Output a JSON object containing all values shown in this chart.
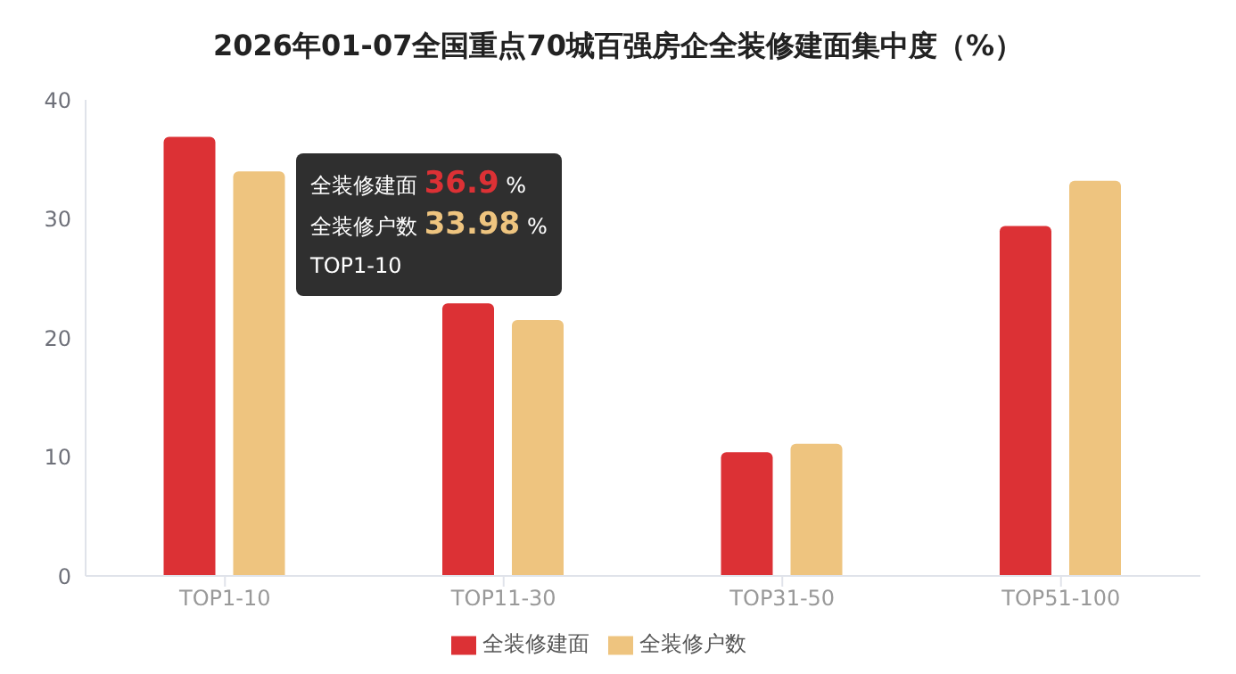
{
  "chart_data": {
    "type": "bar",
    "title": "2026年01-07全国重点70城百强房企全装修建面集中度（%）",
    "categories": [
      "TOP1-10",
      "TOP11-30",
      "TOP31-50",
      "TOP51-100"
    ],
    "series": [
      {
        "name": "全装修建面",
        "color": "#dc3135",
        "values": [
          36.9,
          22.9,
          10.4,
          29.4
        ]
      },
      {
        "name": "全装修户数",
        "color": "#eec47f",
        "values": [
          33.98,
          21.5,
          11.1,
          33.2
        ]
      }
    ],
    "ylim": [
      0,
      40
    ],
    "yticks": [
      0,
      10,
      20,
      30,
      40
    ],
    "grid": false,
    "legend": "bottom",
    "annotations": [
      "全装修建面 36.9 %",
      "全装修户数 33.98 %",
      "TOP1-10"
    ]
  }
}
